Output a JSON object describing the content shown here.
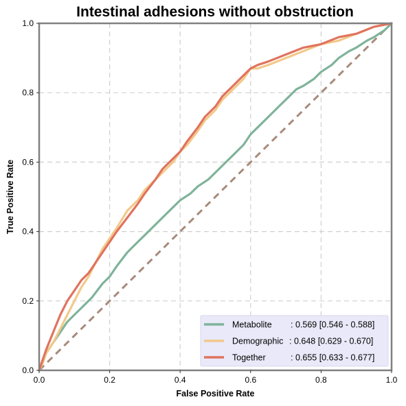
{
  "chart_data": {
    "type": "line",
    "title": "Intestinal adhesions without obstruction",
    "xlabel": "False Positive Rate",
    "ylabel": "True Positive Rate",
    "xlim": [
      0,
      1
    ],
    "ylim": [
      0,
      1
    ],
    "x_ticks": [
      "0.0",
      "0.2",
      "0.4",
      "0.6",
      "0.8",
      "1.0"
    ],
    "y_ticks": [
      "0.0",
      "0.2",
      "0.4",
      "0.6",
      "0.8",
      "1.0"
    ],
    "grid": true,
    "legend_position": "lower-right",
    "reference_line": {
      "x": [
        0,
        1
      ],
      "y": [
        0,
        1
      ],
      "color": "#a88a7a",
      "style": "dashed"
    },
    "series": [
      {
        "name": "Metabolite",
        "label_name": "Metabolite",
        "label_auc": ": 0.569 [0.546 - 0.588]",
        "color": "#7fb39a",
        "x": [
          0,
          0.01,
          0.02,
          0.04,
          0.06,
          0.08,
          0.1,
          0.12,
          0.15,
          0.18,
          0.2,
          0.22,
          0.25,
          0.28,
          0.3,
          0.33,
          0.35,
          0.38,
          0.4,
          0.43,
          0.45,
          0.48,
          0.5,
          0.53,
          0.55,
          0.58,
          0.6,
          0.63,
          0.65,
          0.68,
          0.7,
          0.73,
          0.75,
          0.78,
          0.8,
          0.83,
          0.85,
          0.88,
          0.9,
          0.93,
          0.95,
          0.98,
          1.0
        ],
        "y": [
          0,
          0.03,
          0.05,
          0.08,
          0.11,
          0.14,
          0.16,
          0.18,
          0.21,
          0.25,
          0.27,
          0.3,
          0.34,
          0.37,
          0.39,
          0.42,
          0.44,
          0.47,
          0.49,
          0.51,
          0.53,
          0.55,
          0.57,
          0.6,
          0.62,
          0.65,
          0.68,
          0.71,
          0.73,
          0.76,
          0.78,
          0.81,
          0.82,
          0.84,
          0.86,
          0.88,
          0.9,
          0.92,
          0.93,
          0.95,
          0.96,
          0.98,
          1.0
        ]
      },
      {
        "name": "Demographic",
        "label_name": "Demographic",
        "label_auc": ": 0.648 [0.629 - 0.670]",
        "color": "#f2c98a",
        "x": [
          0,
          0.01,
          0.02,
          0.04,
          0.06,
          0.08,
          0.1,
          0.12,
          0.14,
          0.16,
          0.18,
          0.2,
          0.22,
          0.25,
          0.28,
          0.3,
          0.33,
          0.35,
          0.38,
          0.4,
          0.42,
          0.45,
          0.47,
          0.5,
          0.52,
          0.55,
          0.58,
          0.6,
          0.62,
          0.65,
          0.7,
          0.75,
          0.8,
          0.85,
          0.9,
          0.95,
          1.0
        ],
        "y": [
          0,
          0.02,
          0.05,
          0.08,
          0.12,
          0.16,
          0.2,
          0.24,
          0.27,
          0.31,
          0.35,
          0.38,
          0.41,
          0.46,
          0.49,
          0.52,
          0.55,
          0.57,
          0.6,
          0.63,
          0.65,
          0.69,
          0.72,
          0.75,
          0.78,
          0.81,
          0.84,
          0.87,
          0.87,
          0.88,
          0.9,
          0.92,
          0.94,
          0.95,
          0.97,
          0.99,
          1.0
        ]
      },
      {
        "name": "Together",
        "label_name": "Together",
        "label_auc": ": 0.655 [0.633 - 0.677]",
        "color": "#e0735e",
        "x": [
          0,
          0.01,
          0.02,
          0.04,
          0.06,
          0.08,
          0.1,
          0.12,
          0.14,
          0.16,
          0.18,
          0.2,
          0.22,
          0.25,
          0.28,
          0.3,
          0.33,
          0.35,
          0.38,
          0.4,
          0.42,
          0.45,
          0.47,
          0.5,
          0.52,
          0.55,
          0.58,
          0.6,
          0.62,
          0.65,
          0.7,
          0.75,
          0.8,
          0.85,
          0.9,
          0.95,
          1.0
        ],
        "y": [
          0,
          0.03,
          0.06,
          0.11,
          0.16,
          0.2,
          0.23,
          0.26,
          0.28,
          0.31,
          0.34,
          0.37,
          0.4,
          0.44,
          0.48,
          0.51,
          0.55,
          0.58,
          0.61,
          0.63,
          0.66,
          0.7,
          0.73,
          0.76,
          0.79,
          0.82,
          0.85,
          0.87,
          0.88,
          0.89,
          0.91,
          0.93,
          0.94,
          0.96,
          0.97,
          0.99,
          1.0
        ]
      }
    ]
  }
}
